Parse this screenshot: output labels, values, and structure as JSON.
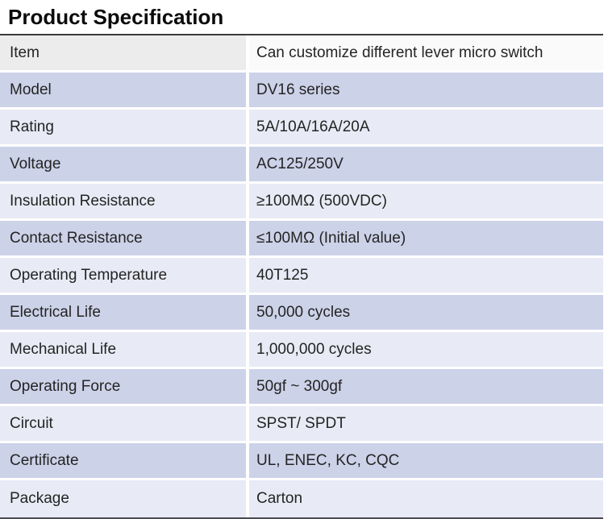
{
  "title": "Product Specification",
  "table": {
    "columns": [
      "label",
      "value"
    ],
    "rows": [
      {
        "label": "Item",
        "value": "Can customize different lever micro switch"
      },
      {
        "label": "Model",
        "value": "DV16 series"
      },
      {
        "label": "Rating",
        "value": "5A/10A/16A/20A"
      },
      {
        "label": "Voltage",
        "value": "AC125/250V"
      },
      {
        "label": "Insulation Resistance",
        "value": "≥100MΩ (500VDC)"
      },
      {
        "label": "Contact Resistance",
        "value": "≤100MΩ (Initial value)"
      },
      {
        "label": "Operating Temperature",
        "value": "40T125"
      },
      {
        "label": "Electrical Life",
        "value": "50,000 cycles"
      },
      {
        "label": "Mechanical Life",
        "value": "1,000,000 cycles"
      },
      {
        "label": "Operating Force",
        "value": "50gf ~ 300gf"
      },
      {
        "label": "Circuit",
        "value": "SPST/ SPDT"
      },
      {
        "label": "Certificate",
        "value": "UL, ENEC, KC, CQC"
      },
      {
        "label": "Package",
        "value": "Carton"
      }
    ],
    "colors": {
      "row_dark": "#CCD2E8",
      "row_light": "#E8EBF5",
      "header_row_left": "#ECECEC",
      "header_row_right": "#FAFAFA",
      "top_rule": "#3B3B3B",
      "bottom_rule": "#4A4A52"
    }
  }
}
